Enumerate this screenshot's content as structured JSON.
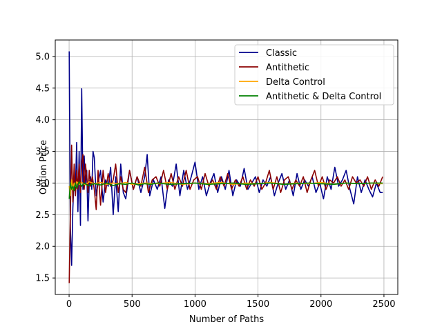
{
  "chart_data": {
    "type": "line",
    "title": "",
    "xlabel": "Number of Paths",
    "ylabel": "Option Price",
    "xlim": [
      -110,
      2610
    ],
    "ylim": [
      1.24,
      5.26
    ],
    "xticks": [
      0,
      500,
      1000,
      1500,
      2000,
      2500
    ],
    "xtick_labels": [
      "0",
      "500",
      "1000",
      "1500",
      "2000",
      "2500"
    ],
    "yticks": [
      1.5,
      2.0,
      2.5,
      3.0,
      3.5,
      4.0,
      4.5,
      5.0
    ],
    "ytick_labels": [
      "1.5",
      "2.0",
      "2.5",
      "3.0",
      "3.5",
      "4.0",
      "4.5",
      "5.0"
    ],
    "grid": true,
    "legend_position": "top-right",
    "series": [
      {
        "name": "Classic",
        "color": "#00008b",
        "x": [
          1,
          10,
          20,
          30,
          40,
          50,
          60,
          70,
          80,
          90,
          100,
          110,
          120,
          130,
          140,
          150,
          160,
          170,
          180,
          190,
          200,
          215,
          230,
          250,
          270,
          290,
          310,
          330,
          350,
          370,
          390,
          410,
          430,
          450,
          480,
          510,
          540,
          570,
          600,
          620,
          640,
          670,
          700,
          730,
          760,
          790,
          820,
          850,
          880,
          910,
          940,
          970,
          1000,
          1030,
          1060,
          1090,
          1120,
          1150,
          1180,
          1210,
          1240,
          1270,
          1300,
          1330,
          1360,
          1390,
          1420,
          1450,
          1480,
          1510,
          1540,
          1570,
          1600,
          1630,
          1660,
          1690,
          1720,
          1750,
          1780,
          1810,
          1840,
          1870,
          1900,
          1930,
          1960,
          1990,
          2020,
          2050,
          2080,
          2110,
          2140,
          2170,
          2200,
          2230,
          2260,
          2290,
          2320,
          2350,
          2380,
          2410,
          2440,
          2470,
          2490
        ],
        "values": [
          5.08,
          2.3,
          1.7,
          2.6,
          3.1,
          2.9,
          3.64,
          2.55,
          3.5,
          2.33,
          4.49,
          2.9,
          3.43,
          3.0,
          3.2,
          2.4,
          3.0,
          3.1,
          2.9,
          3.5,
          3.4,
          2.8,
          3.0,
          3.2,
          2.7,
          3.05,
          2.95,
          3.25,
          2.5,
          3.1,
          2.55,
          3.3,
          2.85,
          2.75,
          3.2,
          2.9,
          3.1,
          2.85,
          3.1,
          3.45,
          2.8,
          3.05,
          2.9,
          3.1,
          2.6,
          3.05,
          2.95,
          3.3,
          2.8,
          3.2,
          2.9,
          3.1,
          3.33,
          2.9,
          3.1,
          2.8,
          3.0,
          3.15,
          2.85,
          3.1,
          2.9,
          3.2,
          2.8,
          3.05,
          2.95,
          3.23,
          2.9,
          3.0,
          3.1,
          2.85,
          3.05,
          2.95,
          3.1,
          2.8,
          3.0,
          3.15,
          2.9,
          3.05,
          2.8,
          3.15,
          2.9,
          3.05,
          2.95,
          3.1,
          2.85,
          3.0,
          2.75,
          3.1,
          2.9,
          3.25,
          2.95,
          3.05,
          3.2,
          2.9,
          2.67,
          3.1,
          2.85,
          3.05,
          2.9,
          2.78,
          3.0,
          2.85,
          2.85
        ]
      },
      {
        "name": "Antithetic",
        "color": "#8b0000",
        "x": [
          1,
          10,
          20,
          30,
          40,
          50,
          60,
          70,
          80,
          90,
          100,
          110,
          120,
          130,
          140,
          150,
          160,
          170,
          185,
          200,
          215,
          230,
          250,
          270,
          290,
          310,
          330,
          350,
          370,
          390,
          410,
          430,
          450,
          480,
          510,
          540,
          570,
          600,
          630,
          660,
          690,
          720,
          750,
          780,
          810,
          840,
          870,
          900,
          930,
          960,
          990,
          1020,
          1050,
          1080,
          1110,
          1140,
          1170,
          1200,
          1230,
          1260,
          1290,
          1320,
          1350,
          1380,
          1410,
          1440,
          1470,
          1500,
          1530,
          1560,
          1590,
          1620,
          1650,
          1680,
          1710,
          1740,
          1770,
          1800,
          1830,
          1860,
          1890,
          1920,
          1950,
          1980,
          2010,
          2040,
          2070,
          2100,
          2130,
          2160,
          2190,
          2220,
          2250,
          2280,
          2310,
          2340,
          2370,
          2400,
          2430,
          2460,
          2490
        ],
        "values": [
          1.42,
          2.5,
          3.6,
          2.7,
          3.3,
          2.8,
          3.2,
          2.9,
          3.3,
          2.85,
          3.3,
          3.45,
          2.9,
          3.3,
          3.1,
          2.85,
          3.2,
          2.95,
          3.1,
          2.9,
          2.58,
          3.2,
          2.65,
          3.2,
          2.85,
          3.15,
          2.95,
          3.05,
          3.3,
          2.85,
          3.1,
          2.9,
          2.85,
          3.2,
          2.9,
          3.1,
          2.95,
          3.25,
          2.85,
          3.05,
          3.1,
          2.95,
          3.2,
          2.9,
          3.15,
          2.9,
          3.1,
          2.95,
          3.2,
          2.9,
          3.05,
          3.1,
          2.9,
          3.15,
          2.95,
          3.05,
          2.9,
          3.1,
          2.95,
          3.15,
          2.9,
          3.05,
          2.95,
          3.1,
          2.9,
          3.05,
          2.95,
          3.1,
          2.9,
          3.0,
          3.2,
          2.9,
          3.1,
          2.85,
          3.05,
          3.1,
          2.9,
          3.05,
          2.95,
          3.1,
          2.85,
          3.05,
          3.2,
          2.95,
          3.1,
          2.9,
          3.05,
          3.0,
          3.1,
          2.95,
          3.05,
          2.9,
          3.1,
          3.0,
          3.05,
          2.95,
          3.1,
          2.9,
          3.05,
          2.95,
          3.1
        ]
      },
      {
        "name": "Delta Control",
        "color": "#ffa500",
        "x": [
          1,
          10,
          20,
          30,
          40,
          50,
          60,
          80,
          100,
          130,
          160,
          200,
          250,
          300,
          350,
          400,
          450,
          500,
          600,
          700,
          800,
          900,
          1000,
          1100,
          1200,
          1300,
          1400,
          1500,
          1600,
          1700,
          1800,
          1900,
          2000,
          2100,
          2200,
          2300,
          2400,
          2490
        ],
        "values": [
          2.95,
          2.8,
          3.05,
          2.9,
          3.0,
          2.95,
          3.02,
          2.98,
          3.01,
          2.97,
          3.02,
          2.99,
          3.01,
          2.98,
          3.0,
          2.99,
          3.01,
          2.98,
          3.0,
          2.99,
          3.01,
          2.98,
          3.0,
          2.99,
          3.01,
          2.98,
          3.0,
          2.99,
          3.01,
          2.98,
          3.0,
          2.99,
          3.01,
          2.98,
          3.0,
          2.99,
          3.0,
          2.99
        ]
      },
      {
        "name": "Antithetic & Delta Control",
        "color": "#008000",
        "x": [
          1,
          10,
          20,
          30,
          40,
          50,
          60,
          80,
          100,
          120,
          150,
          200,
          250,
          300,
          350,
          400,
          450,
          500,
          550,
          600,
          650,
          700,
          800,
          900,
          1000,
          1100,
          1200,
          1300,
          1400,
          1500,
          1600,
          1700,
          1800,
          1900,
          2000,
          2100,
          2200,
          2300,
          2400,
          2490
        ],
        "values": [
          2.75,
          3.0,
          2.9,
          2.95,
          2.88,
          3.0,
          2.92,
          3.02,
          2.95,
          3.0,
          2.96,
          2.99,
          2.97,
          3.0,
          2.96,
          2.99,
          2.98,
          3.0,
          2.97,
          2.99,
          2.98,
          3.0,
          2.98,
          2.99,
          3.0,
          2.98,
          2.99,
          3.0,
          2.98,
          2.99,
          3.0,
          2.98,
          2.99,
          3.0,
          2.99,
          2.98,
          3.0,
          2.99,
          3.0,
          3.0
        ]
      }
    ]
  }
}
